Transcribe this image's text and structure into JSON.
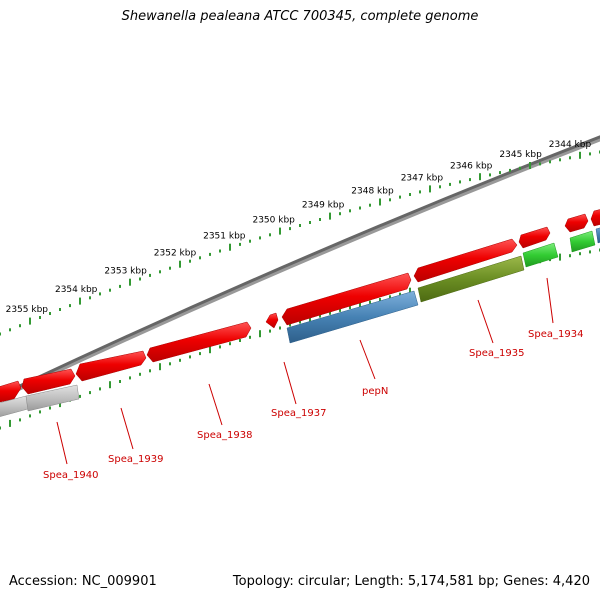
{
  "title": "Shewanella pealeana ATCC 700345, complete genome",
  "footer": {
    "accession": "Accession: NC_009901",
    "summary": "Topology: circular; Length: 5,174,581 bp; Genes: 4,420"
  },
  "kbp_ticks": [
    "2344 kbp",
    "2345 kbp",
    "2346 kbp",
    "2347 kbp",
    "2348 kbp",
    "2349 kbp",
    "2350 kbp",
    "2351 kbp",
    "2352 kbp",
    "2353 kbp",
    "2354 kbp",
    "2355 kbp"
  ],
  "genes": [
    {
      "label": "Spea_1934",
      "strand": "minus",
      "color": "#33cc33"
    },
    {
      "label": "Spea_1935",
      "strand": "minus",
      "color": "#6b8e23"
    },
    {
      "label": "pepN",
      "strand": "minus",
      "color": "#4682b4"
    },
    {
      "label": "Spea_1937",
      "strand": "plus",
      "color": "#ee0000"
    },
    {
      "label": "Spea_1938",
      "strand": "plus",
      "color": "#ee0000"
    },
    {
      "label": "Spea_1939",
      "strand": "plus",
      "color": "#ee0000"
    },
    {
      "label": "Spea_1940",
      "strand": "minus",
      "color": "#c0c0c0"
    }
  ],
  "colors": {
    "backbone": "#777777",
    "ruler": "#339933",
    "plus_strand": "#ee0000",
    "gene_label": "#cc0000"
  }
}
